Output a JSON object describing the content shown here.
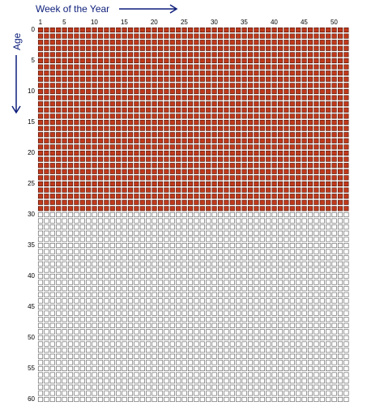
{
  "x_axis": {
    "title": "Week of the Year",
    "ticks": [
      "1",
      "5",
      "10",
      "15",
      "20",
      "25",
      "30",
      "35",
      "40",
      "45",
      "50"
    ],
    "arrow": "right-arrow"
  },
  "y_axis": {
    "title": "Age",
    "ticks": [
      "0",
      "5",
      "10",
      "15",
      "20",
      "25",
      "30",
      "35",
      "40",
      "45",
      "50",
      "55",
      "60"
    ],
    "arrow": "down-arrow"
  },
  "grid": {
    "weeks_per_year": 52,
    "years": 61,
    "years_lived": 30
  },
  "colors": {
    "lived_fill": "#c0391b",
    "lived_stroke": "#4a1208",
    "remaining_fill": "#ffffff",
    "remaining_stroke": "#555555",
    "axis_title": "#0d1e7a"
  }
}
